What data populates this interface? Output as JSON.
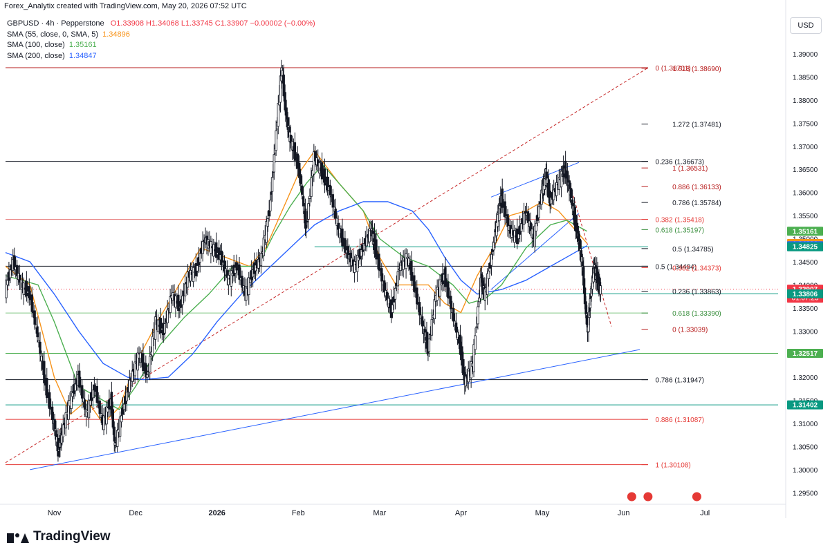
{
  "header": {
    "credit": "Forex_Analytix created with TradingView.com, May 20, 2026 07:52 UTC",
    "currency": "USD"
  },
  "legend": {
    "symbol_line": "GBPUSD · 4h · Pepperstone",
    "ohlc": "O1.33908  H1.34068  L1.33745  C1.33907  −0.00002 (−0.00%)",
    "ohlc_color": "#f23645",
    "indicators": [
      {
        "label": "SMA (55, close, 0, SMA, 5)",
        "value": "1.34896",
        "color": "#f7931a"
      },
      {
        "label": "SMA (100, close)",
        "value": "1.35161",
        "color": "#4caf50"
      },
      {
        "label": "SMA (200, close)",
        "value": "1.34847",
        "color": "#2962ff"
      }
    ]
  },
  "footer": {
    "brand": "TradingView"
  },
  "chart_data": {
    "type": "line",
    "title": "GBPUSD · 4h · Pepperstone",
    "ylim": [
      1.2925,
      1.393
    ],
    "y_ticks": [
      "1.39000",
      "1.38500",
      "1.38000",
      "1.37500",
      "1.37000",
      "1.36500",
      "1.36000",
      "1.35500",
      "1.35000",
      "1.34500",
      "1.34000",
      "1.33500",
      "1.33000",
      "1.32500",
      "1.32000",
      "1.31500",
      "1.31000",
      "1.30500",
      "1.30000",
      "1.29500"
    ],
    "x_ticks": [
      "Nov",
      "Dec",
      "2026",
      "Feb",
      "Mar",
      "Apr",
      "May",
      "Jun",
      "Jul"
    ],
    "x_tick_pos": [
      0.0,
      1.0,
      2.0,
      3.0,
      4.0,
      5.0,
      6.0,
      7.0,
      8.0
    ],
    "x_range": [
      -0.6,
      8.9
    ],
    "grid": false,
    "price_labels": [
      {
        "value": 1.35161,
        "text": "1.35161",
        "color": "#4caf50"
      },
      {
        "value": 1.34896,
        "text": "1.34896",
        "color": "#f7931a"
      },
      {
        "value": 1.34847,
        "text": "1.34847",
        "color": "#2962ff"
      },
      {
        "value": 1.34825,
        "text": "1.34825",
        "color": "#089981"
      },
      {
        "value": 1.33907,
        "text": "1.33907",
        "sub": "01:07:23",
        "color": "#f23645"
      },
      {
        "value": 1.33806,
        "text": "1.33806",
        "color": "#089981"
      },
      {
        "value": 1.32517,
        "text": "1.32517",
        "color": "#4caf50"
      },
      {
        "value": 1.31402,
        "text": "1.31402",
        "color": "#089981"
      }
    ],
    "horizontal_levels": [
      {
        "value": 1.38701,
        "color": "#b71c1c",
        "x_from": -0.6,
        "x_to": 7.3
      },
      {
        "value": 1.36673,
        "color": "#131722",
        "x_from": -0.6,
        "x_to": 7.3
      },
      {
        "value": 1.35418,
        "color": "#e57373",
        "x_from": -0.6,
        "x_to": 7.3
      },
      {
        "value": 1.34825,
        "color": "#089981",
        "x_from": 3.2,
        "x_to": 7.3
      },
      {
        "value": 1.34404,
        "color": "#131722",
        "x_from": -0.6,
        "x_to": 7.3
      },
      {
        "value": 1.3339,
        "color": "#81c784",
        "x_from": -0.6,
        "x_to": 7.3
      },
      {
        "value": 1.32517,
        "color": "#4caf50",
        "x_from": -0.6,
        "x_to": 8.9
      },
      {
        "value": 1.31947,
        "color": "#131722",
        "x_from": -0.6,
        "x_to": 7.3
      },
      {
        "value": 1.31402,
        "color": "#089981",
        "x_from": -0.6,
        "x_to": 8.9
      },
      {
        "value": 1.31087,
        "color": "#e53935",
        "x_from": -0.6,
        "x_to": 7.3
      },
      {
        "value": 1.30108,
        "color": "#e53935",
        "x_from": -0.6,
        "x_to": 7.3
      },
      {
        "value": 1.33807,
        "color": "#089981",
        "x_from": 5.2,
        "x_to": 8.9
      },
      {
        "value": 1.33907,
        "color": "#f23645",
        "x_from": -0.6,
        "x_to": 8.9,
        "dotted": true
      }
    ],
    "fib_levels": [
      {
        "value": 1.38701,
        "text": "0 (1.38701)",
        "color": "#b71c1c",
        "x_from": 6.2,
        "x_to": 7.3
      },
      {
        "value": 1.3869,
        "text": "1.618 (1.38690)",
        "color": "#b71c1c",
        "x_from": 6.2,
        "x_to": 7.3,
        "label_x": 7.6
      },
      {
        "value": 1.37481,
        "text": "1.272 (1.37481)",
        "color": "#131722",
        "x_from": 6.2,
        "x_to": 7.3,
        "label_x": 7.6
      },
      {
        "value": 1.36673,
        "text": "0.236 (1.36673)",
        "color": "#131722",
        "x_from": 6.2,
        "x_to": 7.3
      },
      {
        "value": 1.36531,
        "text": "1 (1.36531)",
        "color": "#b71c1c",
        "x_from": 6.2,
        "x_to": 7.3,
        "label_x": 7.6
      },
      {
        "value": 1.36133,
        "text": "0.886 (1.36133)",
        "color": "#b71c1c",
        "x_from": 6.2,
        "x_to": 7.3,
        "label_x": 7.6
      },
      {
        "value": 1.35784,
        "text": "0.786 (1.35784)",
        "color": "#131722",
        "x_from": 6.2,
        "x_to": 7.3,
        "label_x": 7.6
      },
      {
        "value": 1.35418,
        "text": "0.382 (1.35418)",
        "color": "#e53935",
        "x_from": 6.2,
        "x_to": 7.3
      },
      {
        "value": 1.35197,
        "text": "0.618 (1.35197)",
        "color": "#388e3c",
        "x_from": 6.2,
        "x_to": 7.3
      },
      {
        "value": 1.34785,
        "text": "0.5 (1.34785)",
        "color": "#131722",
        "x_from": 6.2,
        "x_to": 7.3,
        "label_x": 7.6
      },
      {
        "value": 1.34404,
        "text": "0.5 (1.34404)",
        "color": "#131722",
        "x_from": 6.2,
        "x_to": 7.3
      },
      {
        "value": 1.34373,
        "text": "0.382 (1.34373)",
        "color": "#e53935",
        "x_from": 6.2,
        "x_to": 7.3,
        "label_x": 7.6
      },
      {
        "value": 1.33863,
        "text": "0.236 (1.33863)",
        "color": "#131722",
        "x_from": 6.2,
        "x_to": 7.3,
        "label_x": 7.6
      },
      {
        "value": 1.3339,
        "text": "0.618 (1.33390)",
        "color": "#388e3c",
        "x_from": 6.2,
        "x_to": 7.3,
        "label_x": 7.6
      },
      {
        "value": 1.33039,
        "text": "0 (1.33039)",
        "color": "#b71c1c",
        "x_from": 6.2,
        "x_to": 7.3,
        "label_x": 7.6
      },
      {
        "value": 1.31947,
        "text": "0.786 (1.31947)",
        "color": "#131722",
        "x_from": 6.2,
        "x_to": 7.3
      },
      {
        "value": 1.31087,
        "text": "0.886 (1.31087)",
        "color": "#e53935",
        "x_from": 6.2,
        "x_to": 7.3
      },
      {
        "value": 1.30108,
        "text": "1 (1.30108)",
        "color": "#e53935",
        "x_from": 6.2,
        "x_to": 7.3
      }
    ],
    "trend_lines": [
      {
        "name": "long-term support",
        "color": "#2962ff",
        "dashed": false,
        "points": [
          [
            -0.3,
            1.3
          ],
          [
            7.2,
            1.326
          ]
        ]
      },
      {
        "name": "dashed red channel",
        "color": "#c62828",
        "dashed": true,
        "points": [
          [
            -0.6,
            1.3015
          ],
          [
            7.3,
            1.387
          ]
        ]
      },
      {
        "name": "wedge upper",
        "color": "#2962ff",
        "dashed": false,
        "points": [
          [
            5.37,
            1.359
          ],
          [
            6.45,
            1.3665
          ]
        ]
      },
      {
        "name": "wedge lower",
        "color": "#2962ff",
        "dashed": false,
        "points": [
          [
            5.37,
            1.339
          ],
          [
            6.45,
            1.3555
          ]
        ]
      },
      {
        "name": "red dashed down",
        "color": "#c62828",
        "dashed": true,
        "points": [
          [
            6.28,
            1.3653
          ],
          [
            6.85,
            1.331
          ]
        ]
      }
    ],
    "sma": [
      {
        "name": "SMA 55",
        "color": "#f7931a",
        "points": [
          [
            -0.6,
            1.344
          ],
          [
            -0.3,
            1.34
          ],
          [
            0.0,
            1.32
          ],
          [
            0.2,
            1.312
          ],
          [
            0.4,
            1.315
          ],
          [
            0.6,
            1.31
          ],
          [
            0.8,
            1.3135
          ],
          [
            1.0,
            1.323
          ],
          [
            1.3,
            1.333
          ],
          [
            1.6,
            1.342
          ],
          [
            1.8,
            1.348
          ],
          [
            2.1,
            1.346
          ],
          [
            2.4,
            1.344
          ],
          [
            2.6,
            1.348
          ],
          [
            2.8,
            1.356
          ],
          [
            3.0,
            1.364
          ],
          [
            3.2,
            1.369
          ],
          [
            3.5,
            1.362
          ],
          [
            3.8,
            1.356
          ],
          [
            4.0,
            1.346
          ],
          [
            4.2,
            1.34
          ],
          [
            4.4,
            1.34
          ],
          [
            4.6,
            1.34
          ],
          [
            4.8,
            1.336
          ],
          [
            5.0,
            1.334
          ],
          [
            5.2,
            1.342
          ],
          [
            5.4,
            1.348
          ],
          [
            5.6,
            1.355
          ],
          [
            5.8,
            1.356
          ],
          [
            6.0,
            1.358
          ],
          [
            6.2,
            1.356
          ],
          [
            6.4,
            1.352
          ],
          [
            6.55,
            1.349
          ]
        ]
      },
      {
        "name": "SMA 100",
        "color": "#4caf50",
        "points": [
          [
            -0.6,
            1.342
          ],
          [
            -0.2,
            1.34
          ],
          [
            0.0,
            1.332
          ],
          [
            0.3,
            1.318
          ],
          [
            0.6,
            1.315
          ],
          [
            0.8,
            1.313
          ],
          [
            1.0,
            1.318
          ],
          [
            1.3,
            1.327
          ],
          [
            1.6,
            1.333
          ],
          [
            1.9,
            1.338
          ],
          [
            2.2,
            1.344
          ],
          [
            2.5,
            1.344
          ],
          [
            2.7,
            1.351
          ],
          [
            2.9,
            1.357
          ],
          [
            3.1,
            1.362
          ],
          [
            3.3,
            1.366
          ],
          [
            3.5,
            1.362
          ],
          [
            3.8,
            1.356
          ],
          [
            4.0,
            1.35
          ],
          [
            4.3,
            1.346
          ],
          [
            4.6,
            1.344
          ],
          [
            4.9,
            1.34
          ],
          [
            5.1,
            1.336
          ],
          [
            5.3,
            1.337
          ],
          [
            5.5,
            1.34
          ],
          [
            5.8,
            1.348
          ],
          [
            6.1,
            1.353
          ],
          [
            6.3,
            1.354
          ],
          [
            6.55,
            1.3516
          ]
        ]
      },
      {
        "name": "SMA 200",
        "color": "#2962ff",
        "points": [
          [
            -0.6,
            1.347
          ],
          [
            -0.3,
            1.345
          ],
          [
            0.0,
            1.338
          ],
          [
            0.3,
            1.33
          ],
          [
            0.6,
            1.323
          ],
          [
            0.9,
            1.32
          ],
          [
            1.1,
            1.3195
          ],
          [
            1.4,
            1.32
          ],
          [
            1.7,
            1.325
          ],
          [
            2.0,
            1.332
          ],
          [
            2.3,
            1.338
          ],
          [
            2.6,
            1.343
          ],
          [
            2.9,
            1.348
          ],
          [
            3.2,
            1.353
          ],
          [
            3.5,
            1.356
          ],
          [
            3.8,
            1.358
          ],
          [
            4.1,
            1.358
          ],
          [
            4.4,
            1.356
          ],
          [
            4.6,
            1.352
          ],
          [
            4.8,
            1.346
          ],
          [
            5.0,
            1.341
          ],
          [
            5.2,
            1.338
          ],
          [
            5.5,
            1.339
          ],
          [
            5.8,
            1.341
          ],
          [
            6.1,
            1.344
          ],
          [
            6.3,
            1.346
          ],
          [
            6.55,
            1.3485
          ]
        ]
      }
    ],
    "price_path": [
      [
        -0.6,
        1.339
      ],
      [
        -0.5,
        1.345
      ],
      [
        -0.4,
        1.34
      ],
      [
        -0.3,
        1.338
      ],
      [
        -0.2,
        1.329
      ],
      [
        -0.1,
        1.318
      ],
      [
        0.0,
        1.31
      ],
      [
        0.05,
        1.304
      ],
      [
        0.1,
        1.308
      ],
      [
        0.2,
        1.315
      ],
      [
        0.3,
        1.32
      ],
      [
        0.4,
        1.312
      ],
      [
        0.5,
        1.318
      ],
      [
        0.6,
        1.31
      ],
      [
        0.7,
        1.315
      ],
      [
        0.75,
        1.305
      ],
      [
        0.85,
        1.313
      ],
      [
        0.95,
        1.32
      ],
      [
        1.05,
        1.325
      ],
      [
        1.15,
        1.32
      ],
      [
        1.25,
        1.332
      ],
      [
        1.35,
        1.33
      ],
      [
        1.45,
        1.338
      ],
      [
        1.55,
        1.335
      ],
      [
        1.65,
        1.342
      ],
      [
        1.75,
        1.343
      ],
      [
        1.85,
        1.35
      ],
      [
        1.95,
        1.348
      ],
      [
        2.05,
        1.346
      ],
      [
        2.15,
        1.341
      ],
      [
        2.25,
        1.344
      ],
      [
        2.35,
        1.338
      ],
      [
        2.45,
        1.343
      ],
      [
        2.55,
        1.346
      ],
      [
        2.65,
        1.356
      ],
      [
        2.72,
        1.37
      ],
      [
        2.8,
        1.387
      ],
      [
        2.85,
        1.377
      ],
      [
        2.9,
        1.372
      ],
      [
        3.0,
        1.366
      ],
      [
        3.05,
        1.36
      ],
      [
        3.1,
        1.352
      ],
      [
        3.2,
        1.368
      ],
      [
        3.3,
        1.364
      ],
      [
        3.4,
        1.36
      ],
      [
        3.5,
        1.352
      ],
      [
        3.6,
        1.347
      ],
      [
        3.7,
        1.344
      ],
      [
        3.8,
        1.348
      ],
      [
        3.9,
        1.352
      ],
      [
        3.95,
        1.348
      ],
      [
        4.05,
        1.34
      ],
      [
        4.15,
        1.334
      ],
      [
        4.25,
        1.344
      ],
      [
        4.35,
        1.346
      ],
      [
        4.45,
        1.338
      ],
      [
        4.55,
        1.33
      ],
      [
        4.6,
        1.326
      ],
      [
        4.7,
        1.338
      ],
      [
        4.8,
        1.342
      ],
      [
        4.9,
        1.334
      ],
      [
        5.0,
        1.326
      ],
      [
        5.05,
        1.319
      ],
      [
        5.15,
        1.323
      ],
      [
        5.25,
        1.341
      ],
      [
        5.3,
        1.338
      ],
      [
        5.4,
        1.348
      ],
      [
        5.45,
        1.354
      ],
      [
        5.5,
        1.359
      ],
      [
        5.6,
        1.352
      ],
      [
        5.7,
        1.35
      ],
      [
        5.8,
        1.356
      ],
      [
        5.9,
        1.35
      ],
      [
        6.0,
        1.36
      ],
      [
        6.05,
        1.364
      ],
      [
        6.1,
        1.358
      ],
      [
        6.2,
        1.362
      ],
      [
        6.28,
        1.365
      ],
      [
        6.35,
        1.36
      ],
      [
        6.4,
        1.354
      ],
      [
        6.45,
        1.35
      ],
      [
        6.5,
        1.344
      ],
      [
        6.52,
        1.338
      ],
      [
        6.56,
        1.3304
      ],
      [
        6.6,
        1.338
      ],
      [
        6.64,
        1.344
      ],
      [
        6.68,
        1.341
      ],
      [
        6.72,
        1.339
      ]
    ],
    "events": [
      {
        "x": 7.1
      },
      {
        "x": 7.3
      },
      {
        "x": 7.9
      }
    ]
  }
}
